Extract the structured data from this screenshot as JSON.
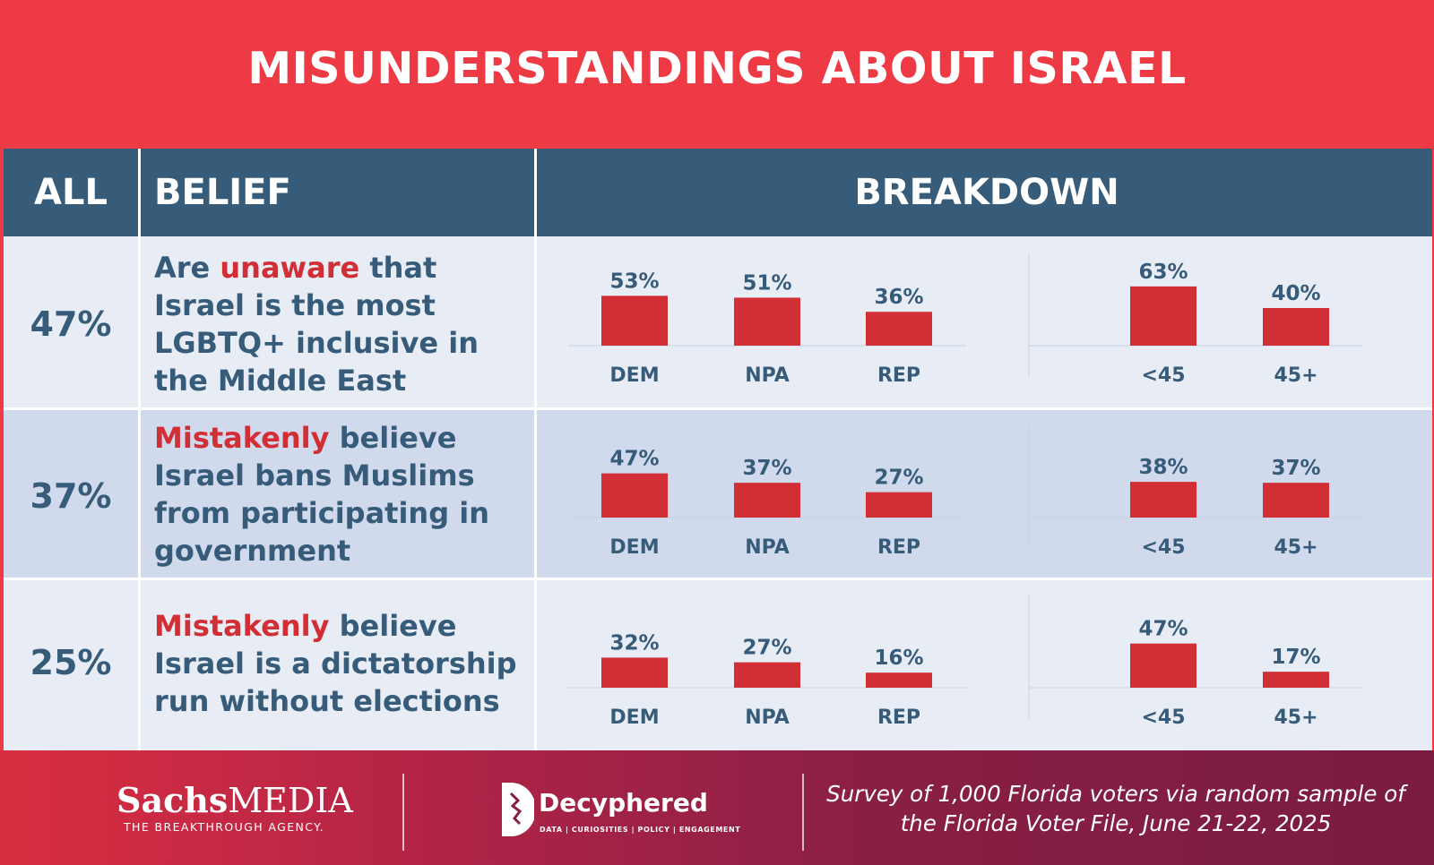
{
  "title": "MISUNDERSTANDINGS ABOUT ISRAEL",
  "header": {
    "all": "ALL",
    "belief": "BELIEF",
    "breakdown": "BREAKDOWN"
  },
  "colors": {
    "accent": "#ee3a45",
    "header": "#365c7a",
    "bar": "#d12e36",
    "row_light": "#e8ecf5",
    "row_mid": "#d1d9ec"
  },
  "rows": [
    {
      "all": "47%",
      "belief_parts": [
        {
          "t": "Are ",
          "hl": false
        },
        {
          "t": "unaware",
          "hl": true
        },
        {
          "t": " that Israel is the most LGBTQ+ inclusive in the Middle East",
          "hl": false
        }
      ]
    },
    {
      "all": "37%",
      "belief_parts": [
        {
          "t": "Mistakenly",
          "hl": true
        },
        {
          "t": " believe Israel bans Muslims from participating in government",
          "hl": false
        }
      ]
    },
    {
      "all": "25%",
      "belief_parts": [
        {
          "t": "Mistakenly",
          "hl": true
        },
        {
          "t": " believe Israel is a dictatorship run without elections",
          "hl": false
        }
      ]
    }
  ],
  "chart_data": [
    {
      "type": "bar",
      "title": "Are unaware that Israel is the most LGBTQ+ inclusive in the Middle East",
      "groups": [
        {
          "name": "party",
          "categories": [
            "DEM",
            "NPA",
            "REP"
          ],
          "values": [
            53,
            51,
            36
          ]
        },
        {
          "name": "age",
          "categories": [
            "<45",
            "45+"
          ],
          "values": [
            63,
            40
          ]
        }
      ],
      "unit": "%",
      "ylim": [
        0,
        100
      ]
    },
    {
      "type": "bar",
      "title": "Mistakenly believe Israel bans Muslims from participating in government",
      "groups": [
        {
          "name": "party",
          "categories": [
            "DEM",
            "NPA",
            "REP"
          ],
          "values": [
            47,
            37,
            27
          ]
        },
        {
          "name": "age",
          "categories": [
            "<45",
            "45+"
          ],
          "values": [
            38,
            37
          ]
        }
      ],
      "unit": "%",
      "ylim": [
        0,
        100
      ]
    },
    {
      "type": "bar",
      "title": "Mistakenly believe Israel is a dictatorship run without elections",
      "groups": [
        {
          "name": "party",
          "categories": [
            "DEM",
            "NPA",
            "REP"
          ],
          "values": [
            32,
            27,
            16
          ]
        },
        {
          "name": "age",
          "categories": [
            "<45",
            "45+"
          ],
          "values": [
            47,
            17
          ]
        }
      ],
      "unit": "%",
      "ylim": [
        0,
        100
      ]
    }
  ],
  "footer": {
    "sachs_brand_bold": "Sachs",
    "sachs_brand_light": "MEDIA",
    "sachs_tagline": "THE BREAKTHROUGH AGENCY.",
    "decyphered_name": "Decyphered",
    "decyphered_tagline": "DATA | CURIOSITIES | POLICY | ENGAGEMENT",
    "survey_note": "Survey of 1,000 Florida voters via random sample of the Florida Voter File, June 21-22, 2025"
  }
}
